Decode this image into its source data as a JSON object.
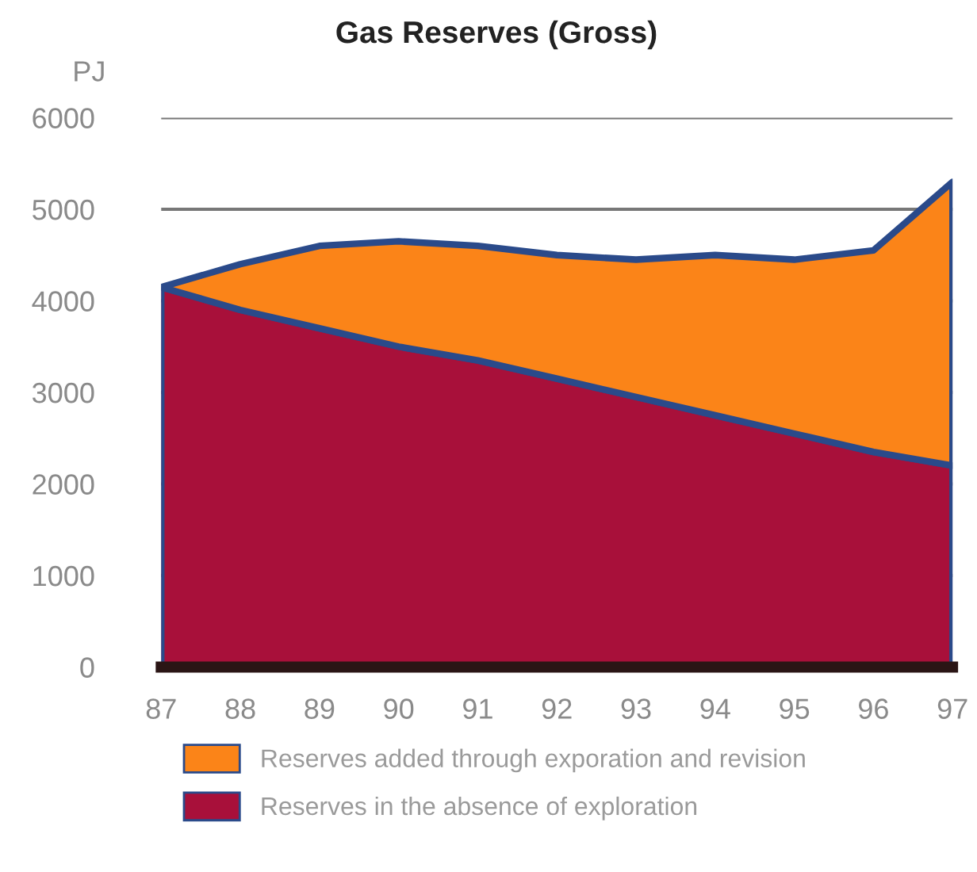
{
  "chart_data": {
    "type": "area",
    "title": "Gas Reserves (Gross)",
    "ylabel": "PJ",
    "stacked": true,
    "x": [
      87,
      88,
      89,
      90,
      91,
      92,
      93,
      94,
      95,
      96,
      97
    ],
    "series": [
      {
        "name": "Reserves in the absence of exploration",
        "color": "#a8103a",
        "values": [
          4150,
          3900,
          3700,
          3500,
          3350,
          3150,
          2950,
          2750,
          2550,
          2350,
          2200
        ]
      },
      {
        "name": "Reserves added through exporation and revision",
        "color": "#fb8418",
        "values": [
          0,
          500,
          900,
          1150,
          1250,
          1350,
          1500,
          1750,
          1900,
          2200,
          3100
        ]
      }
    ],
    "xlim": [
      87,
      97
    ],
    "xticks": [
      87,
      88,
      89,
      90,
      91,
      92,
      93,
      94,
      95,
      96,
      97
    ],
    "ylim": [
      0,
      6000
    ],
    "yticks": [
      0,
      1000,
      2000,
      3000,
      4000,
      5000,
      6000
    ],
    "grid": "y",
    "legend": "bottom"
  }
}
